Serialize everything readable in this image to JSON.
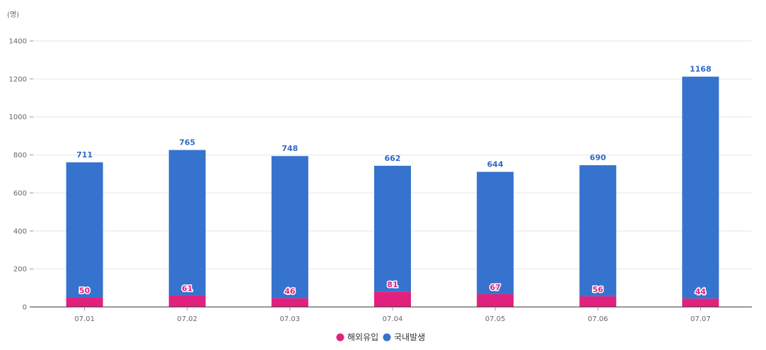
{
  "chart_data": {
    "type": "bar",
    "stacked": true,
    "unit_label": "(명)",
    "categories": [
      "07.01",
      "07.02",
      "07.03",
      "07.04",
      "07.05",
      "07.06",
      "07.07"
    ],
    "series": [
      {
        "name": "해외유입",
        "values": [
          50,
          61,
          46,
          81,
          67,
          56,
          44
        ],
        "color": "#e0227e"
      },
      {
        "name": "국내발생",
        "values": [
          711,
          765,
          748,
          662,
          644,
          690,
          1168
        ],
        "color": "#3573ce"
      }
    ],
    "ylim": [
      0,
      1400
    ],
    "yticks": [
      0,
      200,
      400,
      600,
      800,
      1000,
      1200,
      1400
    ],
    "grid": true,
    "legend": "bottom-center"
  }
}
